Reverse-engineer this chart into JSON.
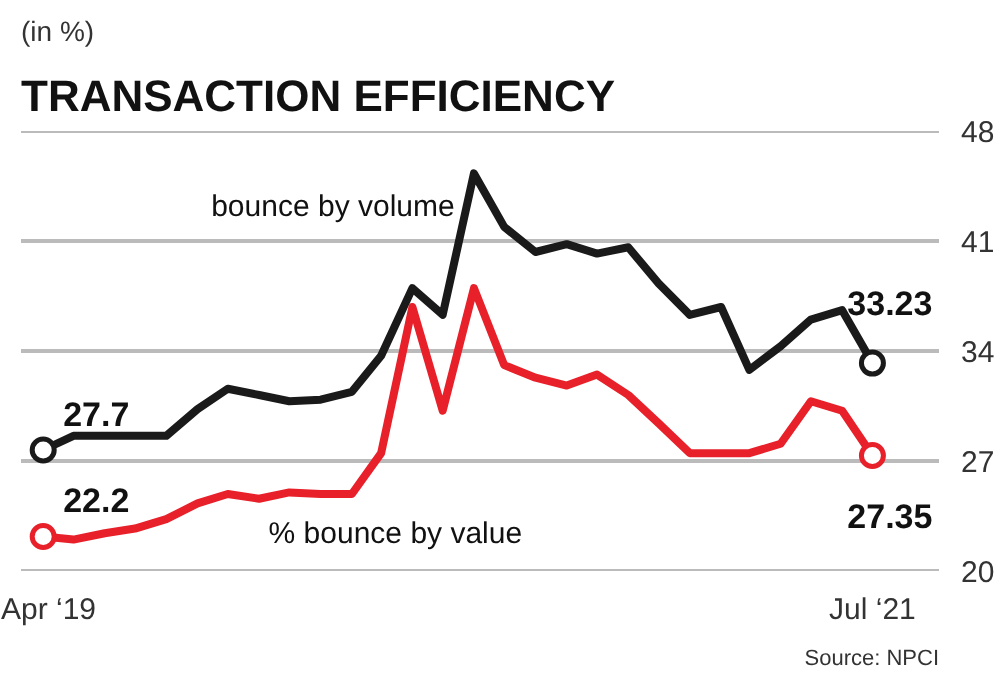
{
  "chart_data": {
    "type": "line",
    "title": "TRANSACTION EFFICIENCY",
    "ylabel": "(in %)",
    "x": [
      "2019-04",
      "2019-05",
      "2019-06",
      "2019-07",
      "2019-08",
      "2019-09",
      "2019-10",
      "2019-11",
      "2019-12",
      "2020-01",
      "2020-02",
      "2020-03",
      "2020-04",
      "2020-05",
      "2020-06",
      "2020-07",
      "2020-08",
      "2020-09",
      "2020-10",
      "2020-11",
      "2020-12",
      "2021-01",
      "2021-02",
      "2021-03",
      "2021-04",
      "2021-05",
      "2021-06",
      "2021-07"
    ],
    "series": [
      {
        "name": "bounce by volume",
        "color": "#1a1a1a",
        "values": [
          27.7,
          28.6,
          28.6,
          28.6,
          28.6,
          30.3,
          31.6,
          31.2,
          30.8,
          30.9,
          31.4,
          33.7,
          38.0,
          36.3,
          45.3,
          41.9,
          40.3,
          40.8,
          40.2,
          40.6,
          38.3,
          36.3,
          36.8,
          32.8,
          34.3,
          36.0,
          36.6,
          33.23
        ],
        "value_labels": [
          "27.7",
          null,
          null,
          null,
          null,
          null,
          null,
          null,
          null,
          null,
          null,
          null,
          null,
          null,
          null,
          null,
          null,
          null,
          null,
          null,
          null,
          null,
          null,
          null,
          null,
          null,
          null,
          "33.23"
        ]
      },
      {
        "name": "% bounce by value",
        "color": "#e8202a",
        "values": [
          22.2,
          22.0,
          22.4,
          22.7,
          23.3,
          24.3,
          24.9,
          24.6,
          25.0,
          24.9,
          24.9,
          27.5,
          36.8,
          30.2,
          38.0,
          33.1,
          32.3,
          31.8,
          32.5,
          31.2,
          29.4,
          27.5,
          27.5,
          27.5,
          28.1,
          30.8,
          30.2,
          27.35
        ],
        "value_labels": [
          "22.2",
          null,
          null,
          null,
          null,
          null,
          null,
          null,
          null,
          null,
          null,
          null,
          null,
          null,
          null,
          null,
          null,
          null,
          null,
          null,
          null,
          null,
          null,
          null,
          null,
          null,
          null,
          "27.35"
        ]
      }
    ],
    "xlim": [
      "2019-03-10",
      "2021-09-05"
    ],
    "xticks": [
      {
        "value": "2019-04",
        "label": "Apr ‘19"
      },
      {
        "value": "2021-07",
        "label": "Jul ‘21"
      }
    ],
    "ylim": [
      20,
      48
    ],
    "yticks": [
      20,
      27,
      34,
      41,
      48
    ],
    "grid": "y",
    "legend": false,
    "annotations": [
      "Source: NPCI"
    ]
  }
}
